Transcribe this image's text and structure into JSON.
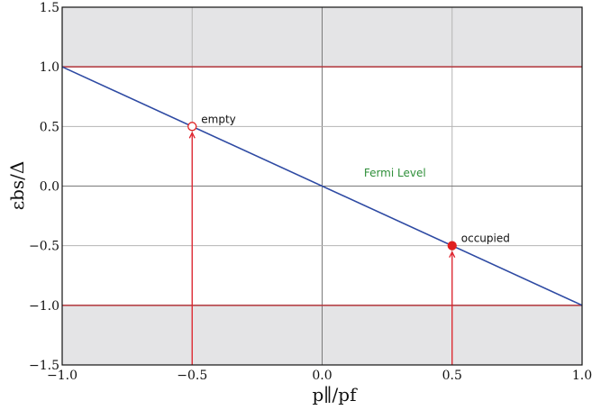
{
  "chart_data": {
    "type": "line",
    "xlim": [
      -1.0,
      1.0
    ],
    "ylim": [
      -1.5,
      1.5
    ],
    "x_ticks": [
      -1.0,
      -0.5,
      0.0,
      0.5,
      1.0
    ],
    "x_tick_labels": [
      "−1.0",
      "−0.5",
      "0.0",
      "0.5",
      "1.0"
    ],
    "y_ticks": [
      -1.5,
      -1.0,
      -0.5,
      0.0,
      0.5,
      1.0,
      1.5
    ],
    "y_tick_labels": [
      "−1.5",
      "−1.0",
      "−0.5",
      "0.0",
      "0.5",
      "1.0",
      "1.5"
    ],
    "xlabel": "p∥/pf",
    "ylabel": "εbs/Δ",
    "grid": true,
    "shaded_bands": [
      {
        "y_from": 1.0,
        "y_to": 1.5
      },
      {
        "y_from": -1.5,
        "y_to": -1.0
      }
    ],
    "horizontal_lines": [
      1.0,
      -1.0
    ],
    "series": [
      {
        "x": [
          -1.0,
          1.0
        ],
        "y": [
          1.0,
          -1.0
        ]
      }
    ],
    "points": [
      {
        "x": -0.5,
        "y": 0.5,
        "filled": false,
        "label": "empty"
      },
      {
        "x": 0.5,
        "y": -0.5,
        "filled": true,
        "label": "occupied"
      }
    ],
    "arrows": [
      {
        "x": -0.5,
        "from_y": -1.5,
        "to_y": 0.5
      },
      {
        "x": 0.5,
        "from_y": -1.5,
        "to_y": -0.5
      }
    ],
    "annotations": [
      {
        "text": "Fermi Level",
        "x": 0.28,
        "y": 0.05
      }
    ],
    "colors": {
      "line": "#2e4aa3",
      "band_lines": "#b2343a",
      "points": "#e02020",
      "arrows": "#e0202a",
      "shade": "#e4e4e6",
      "grid": "#b4b4b4",
      "zero_lines": "#7a7a7a",
      "fermi_text": "#2f8f3a"
    }
  }
}
